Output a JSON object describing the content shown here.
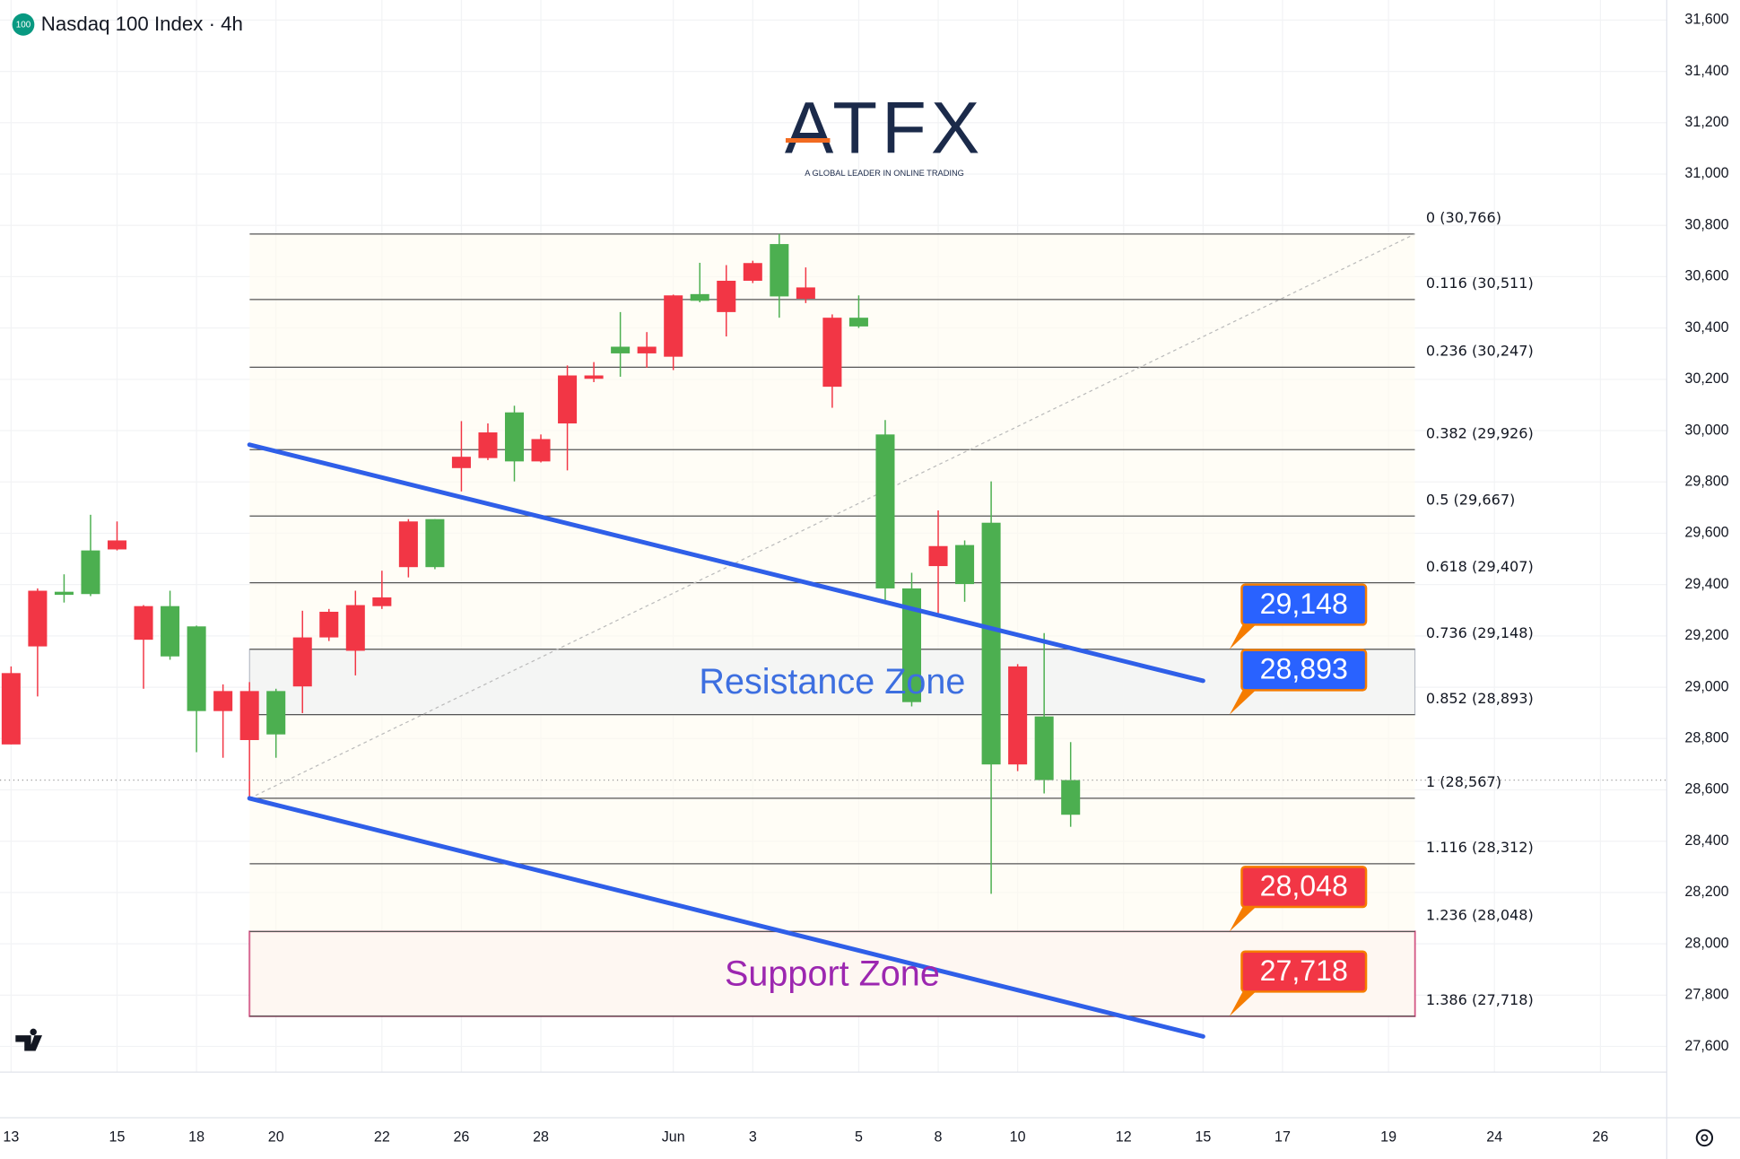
{
  "header": {
    "icon": "100",
    "title": "Nasdaq 100 Index · 4h"
  },
  "logo": {
    "name": "ATFX",
    "tagline": "A GLOBAL LEADER IN ONLINE TRADING"
  },
  "chart_data": {
    "type": "candlestick",
    "grid": true,
    "up_color": "#4caf50",
    "down_color": "#f23645",
    "categories": [
      "13",
      null,
      null,
      null,
      "15",
      null,
      null,
      "18",
      null,
      null,
      "20",
      null,
      null,
      null,
      "22",
      null,
      null,
      "26",
      null,
      null,
      "28",
      null,
      null,
      null,
      null,
      "Jun",
      null,
      null,
      "3",
      null,
      null,
      null,
      "5",
      null,
      null,
      "8",
      null,
      null,
      "10",
      null,
      null,
      null,
      "12",
      null,
      null,
      "15",
      null,
      null,
      "17",
      null,
      null,
      null,
      "19",
      null,
      null,
      null,
      "24",
      null,
      null,
      null,
      "26"
    ],
    "open": [
      29055,
      29376,
      29360,
      29363,
      29572,
      29316,
      29120,
      28907,
      28985,
      28985,
      28816,
      29194,
      29294,
      29320,
      29350,
      29646,
      29468,
      29898,
      29993,
      29880,
      29967,
      30215,
      30215,
      30301,
      30327,
      30527,
      30506,
      30584,
      30653,
      30523,
      30558,
      30440,
      30406,
      29385,
      28942,
      29550,
      29402,
      28699,
      29081,
      28638,
      28503,
      null,
      null,
      null,
      null,
      null,
      null,
      null,
      null,
      null,
      null,
      null,
      null,
      null,
      null,
      null,
      null,
      null,
      null,
      null,
      null
    ],
    "high": [
      29081,
      29385,
      29440,
      29672,
      29646,
      29320,
      29376,
      29240,
      29011,
      29020,
      28994,
      29298,
      29305,
      29376,
      29454,
      29655,
      29655,
      30037,
      30028,
      30097,
      29985,
      30254,
      30267,
      30462,
      30384,
      30530,
      30654,
      30645,
      30662,
      30766,
      30636,
      30453,
      30527,
      30041,
      29446,
      29689,
      29572,
      29802,
      29090,
      29211,
      28786,
      null,
      null,
      null,
      null,
      null,
      null,
      null,
      null,
      null,
      null,
      null,
      null,
      null,
      null,
      null,
      null,
      null,
      null,
      null,
      null
    ],
    "low": [
      28777,
      28964,
      29330,
      29355,
      29533,
      28994,
      29107,
      28747,
      28725,
      28567,
      28725,
      28899,
      29180,
      29046,
      29305,
      29428,
      29460,
      29763,
      29885,
      29802,
      29876,
      29845,
      30189,
      30210,
      30245,
      30236,
      30500,
      30367,
      30575,
      30440,
      30497,
      30089,
      30400,
      29333,
      28925,
      29289,
      29333,
      28195,
      28673,
      28586,
      28456,
      null,
      null,
      null,
      null,
      null,
      null,
      null,
      null,
      null,
      null,
      null,
      null,
      null,
      null,
      null,
      null,
      null,
      null,
      null,
      null
    ],
    "close": [
      28777,
      29159,
      29372,
      29533,
      29537,
      29185,
      29316,
      29237,
      28907,
      28794,
      28985,
      29003,
      29194,
      29142,
      29316,
      29468,
      29655,
      29854,
      29893,
      30071,
      29880,
      30028,
      30202,
      30327,
      30301,
      30288,
      30532,
      30462,
      30584,
      30727,
      30514,
      30171,
      30440,
      29985,
      29385,
      29472,
      29554,
      29641,
      28699,
      28886,
      28638,
      null,
      null,
      null,
      null,
      null,
      null,
      null,
      null,
      null,
      null,
      null,
      null,
      null,
      null,
      null,
      null,
      null,
      null,
      null,
      null
    ],
    "ylim": [
      27600,
      31600
    ],
    "yticks": [
      {
        "value": 27600,
        "label": "27,600"
      },
      {
        "value": 27800,
        "label": "27,800"
      },
      {
        "value": 28000,
        "label": "28,000"
      },
      {
        "value": 28200,
        "label": "28,200"
      },
      {
        "value": 28400,
        "label": "28,400"
      },
      {
        "value": 28600,
        "label": "28,600"
      },
      {
        "value": 28800,
        "label": "28,800"
      },
      {
        "value": 29000,
        "label": "29,000"
      },
      {
        "value": 29200,
        "label": "29,200"
      },
      {
        "value": 29400,
        "label": "29,400"
      },
      {
        "value": 29600,
        "label": "29,600"
      },
      {
        "value": 29800,
        "label": "29,800"
      },
      {
        "value": 30000,
        "label": "30,000"
      },
      {
        "value": 30200,
        "label": "30,200"
      },
      {
        "value": 30400,
        "label": "30,400"
      },
      {
        "value": 30600,
        "label": "30,600"
      },
      {
        "value": 30800,
        "label": "30,800"
      },
      {
        "value": 31000,
        "label": "31,000"
      },
      {
        "value": 31200,
        "label": "31,200"
      },
      {
        "value": 31400,
        "label": "31,400"
      },
      {
        "value": 31600,
        "label": "31,600"
      }
    ],
    "fib_levels": [
      {
        "value": 30766,
        "label": "0 (30,766)"
      },
      {
        "value": 30511,
        "label": "0.116 (30,511)"
      },
      {
        "value": 30247,
        "label": "0.236 (30,247)"
      },
      {
        "value": 29926,
        "label": "0.382 (29,926)"
      },
      {
        "value": 29667,
        "label": "0.5 (29,667)"
      },
      {
        "value": 29407,
        "label": "0.618 (29,407)"
      },
      {
        "value": 29148,
        "label": "0.736 (29,148)"
      },
      {
        "value": 28893,
        "label": "0.852 (28,893)"
      },
      {
        "value": 28567,
        "label": "1 (28,567)"
      },
      {
        "value": 28312,
        "label": "1.116 (28,312)"
      },
      {
        "value": 28048,
        "label": "1.236 (28,048)"
      },
      {
        "value": 27718,
        "label": "1.386 (27,718)"
      }
    ],
    "zones": [
      {
        "label": "Resistance Zone",
        "low": 28893,
        "high": 29148,
        "color": "#3d6fe0"
      },
      {
        "label": "Support Zone",
        "low": 27718,
        "high": 28048,
        "color": "#9c27b0"
      }
    ],
    "trendlines": [
      {
        "start": 29945,
        "end": 29025,
        "color": "#2f5fe8"
      },
      {
        "start": 28567,
        "end": 27639,
        "color": "#2f5fe8"
      }
    ],
    "callouts": {
      "values": [
        29148,
        28893,
        28048,
        27718
      ],
      "value_labels": [
        "29,148",
        "28,893",
        "28,048",
        "27,718"
      ],
      "colors": [
        "#2962ff",
        "#2962ff",
        "#f23645",
        "#f23645"
      ]
    }
  }
}
